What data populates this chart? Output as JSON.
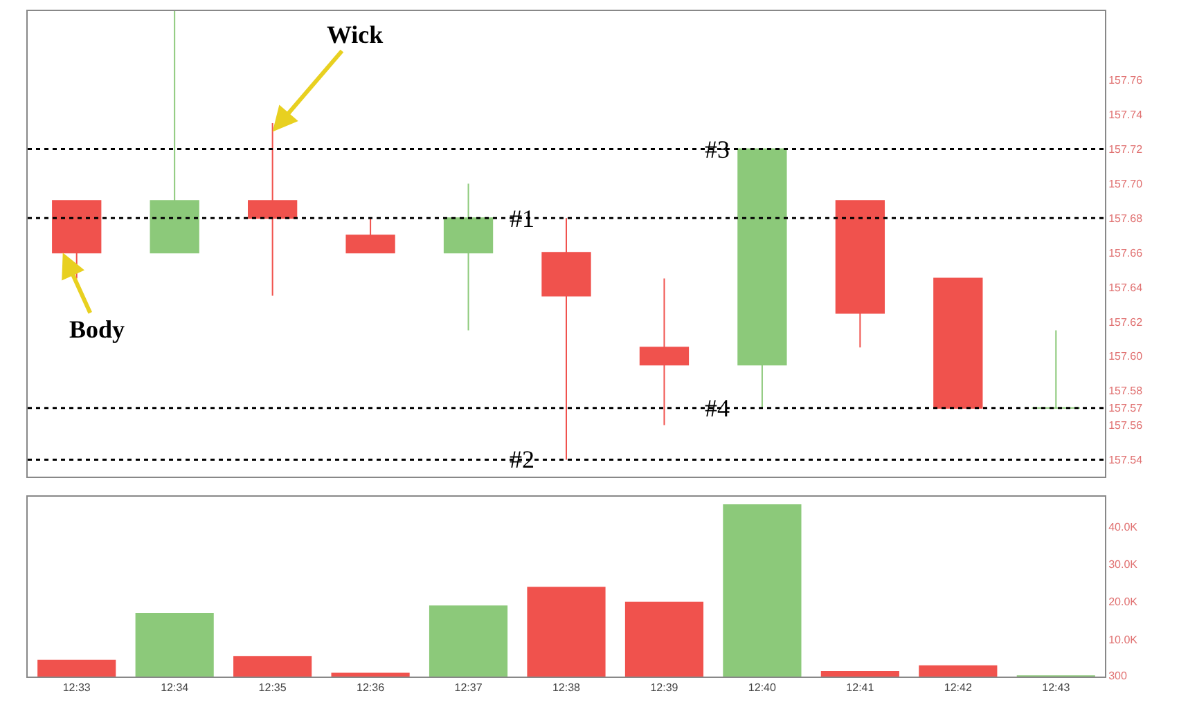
{
  "chart_data": [
    {
      "type": "candlestick",
      "categories": [
        "12:33",
        "12:34",
        "12:35",
        "12:36",
        "12:37",
        "12:38",
        "12:39",
        "12:40",
        "12:41",
        "12:42",
        "12:43"
      ],
      "ohlc": [
        [
          157.69,
          157.69,
          157.645,
          157.66
        ],
        [
          157.66,
          157.8,
          157.66,
          157.69
        ],
        [
          157.69,
          157.735,
          157.635,
          157.68
        ],
        [
          157.67,
          157.68,
          157.66,
          157.66
        ],
        [
          157.66,
          157.7,
          157.615,
          157.68
        ],
        [
          157.66,
          157.68,
          157.54,
          157.635
        ],
        [
          157.605,
          157.645,
          157.56,
          157.595
        ],
        [
          157.595,
          157.72,
          157.57,
          157.72
        ],
        [
          157.69,
          157.69,
          157.605,
          157.625
        ],
        [
          157.645,
          157.645,
          157.57,
          157.57
        ],
        [
          157.57,
          157.615,
          157.57,
          157.57
        ]
      ],
      "colors": [
        "#f0524d",
        "#8cc97a",
        "#f0524d",
        "#f0524d",
        "#8cc97a",
        "#f0524d",
        "#f0524d",
        "#8cc97a",
        "#f0524d",
        "#f0524d",
        "#8cc97a"
      ],
      "ylim": [
        157.53,
        157.8
      ],
      "yticks": [
        157.54,
        157.56,
        157.57,
        157.58,
        {
          "value": 157.6,
          "label": "157.60"
        },
        157.62,
        157.64,
        157.66,
        157.68,
        {
          "value": 157.7,
          "label": "157.70"
        },
        157.72,
        157.74,
        157.76
      ],
      "ref_lines": [
        {
          "axis": "y",
          "value": 157.68,
          "line_style": "dotted",
          "color": "#000000"
        },
        {
          "axis": "y",
          "value": 157.54,
          "line_style": "dotted",
          "color": "#000000"
        },
        {
          "axis": "y",
          "value": 157.72,
          "line_style": "dotted",
          "color": "#000000"
        },
        {
          "axis": "y",
          "value": 157.57,
          "line_style": "dotted",
          "color": "#000000"
        }
      ],
      "annotations": [
        {
          "text": "Wick",
          "x": "12:35",
          "y": 157.73
        },
        {
          "text": "Body",
          "x": "12:33",
          "y": 157.66
        },
        {
          "text": "#1",
          "x": "12:38",
          "y": 157.68
        },
        {
          "text": "#2",
          "x": "12:38",
          "y": 157.54
        },
        {
          "text": "#3",
          "x": "12:40",
          "y": 157.72
        },
        {
          "text": "#4",
          "x": "12:40",
          "y": 157.57
        }
      ],
      "tick_labels": "y",
      "grid": false
    },
    {
      "type": "bar",
      "categories": [
        "12:33",
        "12:34",
        "12:35",
        "12:36",
        "12:37",
        "12:38",
        "12:39",
        "12:40",
        "12:41",
        "12:42",
        "12:43"
      ],
      "values": [
        4500,
        17000,
        5500,
        1000,
        19000,
        24000,
        20000,
        46000,
        1500,
        3000,
        300
      ],
      "colors": [
        "#f0524d",
        "#8cc97a",
        "#f0524d",
        "#f0524d",
        "#8cc97a",
        "#f0524d",
        "#f0524d",
        "#8cc97a",
        "#f0524d",
        "#f0524d",
        "#8cc97a"
      ],
      "ylim": [
        0,
        48000
      ],
      "yticks": [
        300,
        {
          "value": 10000,
          "label": "10.0K"
        },
        {
          "value": 20000,
          "label": "20.0K"
        },
        {
          "value": 30000,
          "label": "30.0K"
        },
        {
          "value": 40000,
          "label": "40.0K"
        }
      ],
      "grid": false
    }
  ]
}
